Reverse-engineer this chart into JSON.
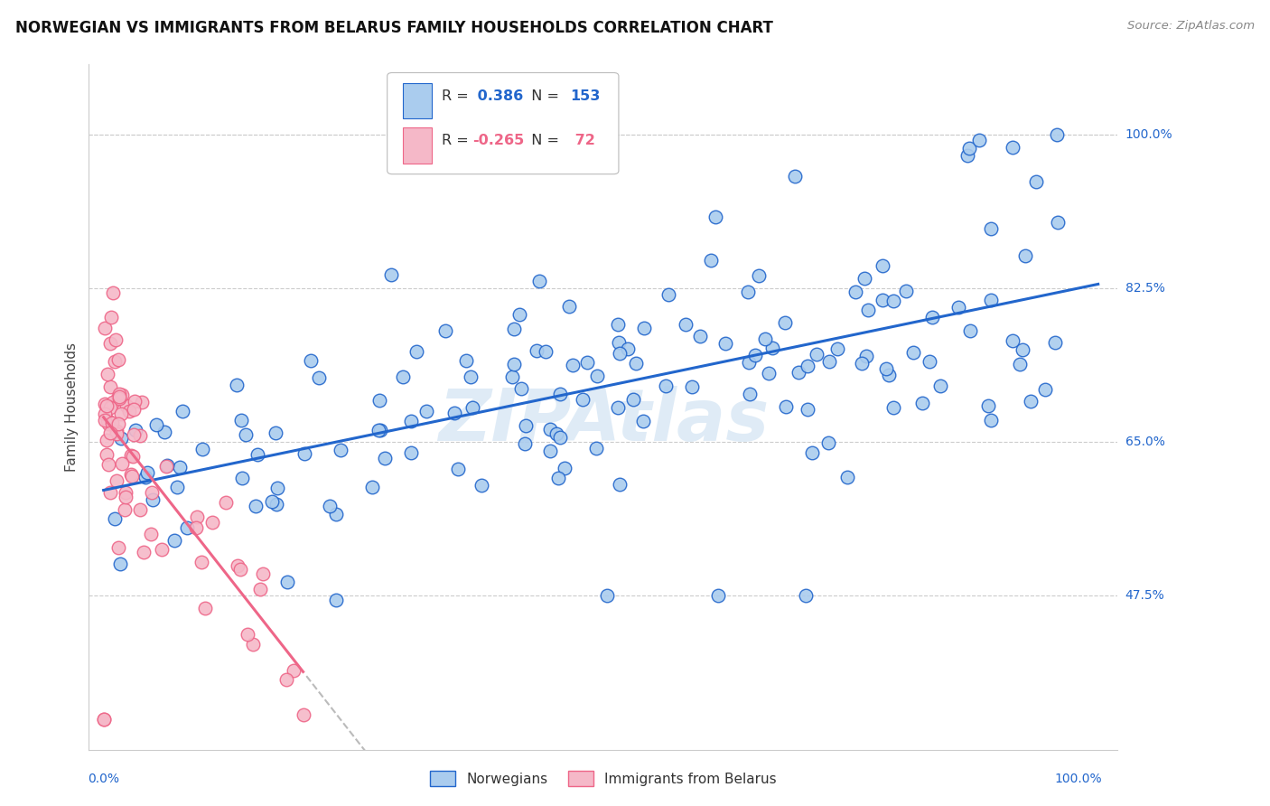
{
  "title": "NORWEGIAN VS IMMIGRANTS FROM BELARUS FAMILY HOUSEHOLDS CORRELATION CHART",
  "source": "Source: ZipAtlas.com",
  "ylabel": "Family Households",
  "watermark": "ZIPAtlas",
  "legend_norwegian": "Norwegians",
  "legend_belarus": "Immigrants from Belarus",
  "r_norwegian": 0.386,
  "n_norwegian": 153,
  "r_belarus": -0.265,
  "n_belarus": 72,
  "color_norwegian": "#aaccee",
  "color_norwegian_line": "#2266cc",
  "color_belarus": "#f5b8c8",
  "color_belarus_line": "#ee6688",
  "color_dashed_ext": "#bbbbbb",
  "background_color": "#ffffff",
  "grid_color": "#cccccc",
  "title_fontsize": 12,
  "source_fontsize": 9.5,
  "axis_label_fontsize": 11,
  "tick_fontsize": 10,
  "y_min": 0.3,
  "y_max": 1.08,
  "x_min": -0.015,
  "x_max": 1.04
}
